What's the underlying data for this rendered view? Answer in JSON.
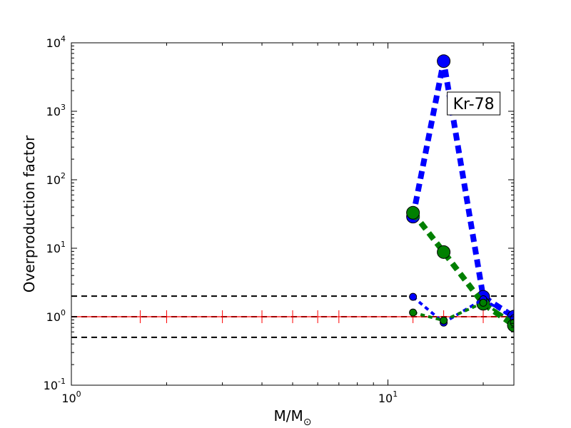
{
  "chart_data": {
    "type": "line",
    "title": "",
    "xlabel": "M/M",
    "xlabel_sub": "⊙",
    "ylabel": "Overproduction factor",
    "xscale": "log",
    "yscale": "log",
    "xlim": [
      1,
      25
    ],
    "ylim": [
      0.1,
      10000
    ],
    "grid": false,
    "legend": "none",
    "x_ticks": [
      {
        "value": 1,
        "base": "10",
        "exp": "0"
      },
      {
        "value": 10,
        "base": "10",
        "exp": "1"
      }
    ],
    "y_ticks": [
      {
        "value": 0.1,
        "base": "10",
        "exp": "-1"
      },
      {
        "value": 1,
        "base": "10",
        "exp": "0"
      },
      {
        "value": 10,
        "base": "10",
        "exp": "1"
      },
      {
        "value": 100,
        "base": "10",
        "exp": "2"
      },
      {
        "value": 1000,
        "base": "10",
        "exp": "3"
      },
      {
        "value": 10000,
        "base": "10",
        "exp": "4"
      }
    ],
    "annotation": {
      "text": "Kr-78",
      "x": 15,
      "y": 1300
    },
    "reference_lines": [
      {
        "y": 2.0,
        "color": "#000000",
        "style": "dashed"
      },
      {
        "y": 1.0,
        "color": "#000000",
        "style": "dashed"
      },
      {
        "y": 0.5,
        "color": "#000000",
        "style": "dashed"
      }
    ],
    "solar_line": {
      "y": 1.0,
      "color": "#ff0000",
      "marks_x": [
        1.65,
        2.0,
        3.0,
        4.0,
        5.0,
        6.0,
        7.0,
        12.0,
        15.0,
        20.0,
        25.0
      ]
    },
    "series": [
      {
        "color": "#0000ff",
        "linewidth": 8,
        "marker_size": 9,
        "x": [
          12,
          15,
          20,
          25
        ],
        "y": [
          29,
          5400,
          1.95,
          1.0
        ]
      },
      {
        "color": "#008000",
        "linewidth": 8,
        "marker_size": 9,
        "x": [
          12,
          15,
          20,
          25
        ],
        "y": [
          33,
          8.8,
          1.55,
          0.75
        ]
      },
      {
        "color": "#0000ff",
        "linewidth": 4,
        "marker_size": 5,
        "x": [
          12,
          15,
          20,
          25
        ],
        "y": [
          1.95,
          0.82,
          1.8,
          0.95
        ]
      },
      {
        "color": "#008000",
        "linewidth": 4,
        "marker_size": 5,
        "x": [
          12,
          15,
          20,
          25
        ],
        "y": [
          1.15,
          0.88,
          1.6,
          0.82
        ]
      }
    ]
  }
}
